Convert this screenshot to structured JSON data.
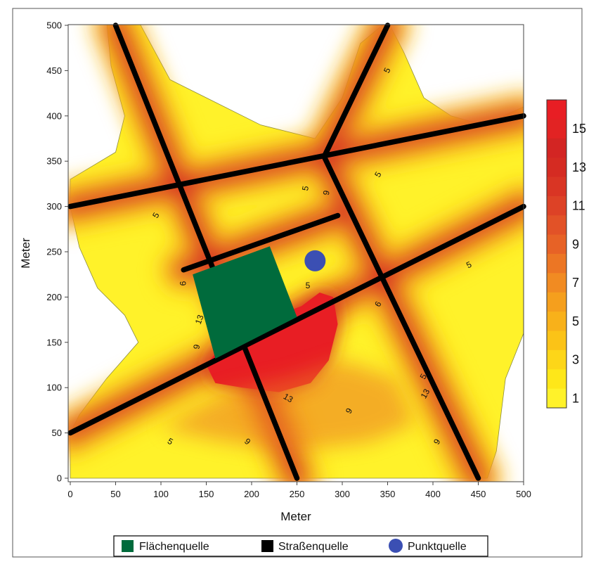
{
  "chart_data": {
    "type": "heatmap",
    "xlabel": "Meter",
    "ylabel": "Meter",
    "xlim": [
      0,
      500
    ],
    "ylim": [
      0,
      500
    ],
    "x_ticks": [
      "0",
      "50",
      "100",
      "150",
      "200",
      "250",
      "300",
      "350",
      "400",
      "450",
      "500"
    ],
    "y_ticks": [
      "0",
      "50",
      "100",
      "150",
      "200",
      "250",
      "300",
      "350",
      "400",
      "450",
      "500"
    ],
    "colorbar": {
      "labels": [
        "15",
        "13",
        "11",
        "9",
        "7",
        "5",
        "3",
        "1"
      ],
      "levels": [
        1,
        2,
        3,
        4,
        5,
        6,
        7,
        8,
        9,
        10,
        11,
        12,
        13,
        14,
        15,
        16
      ],
      "colors": [
        "#fff22a",
        "#fee719",
        "#fdd618",
        "#fbc317",
        "#f8b11a",
        "#f59f1d",
        "#f18b22",
        "#ec7624",
        "#e76226",
        "#e25227",
        "#dd4226",
        "#d93524",
        "#d52b22",
        "#d32523",
        "#e22323",
        "#e81e24"
      ]
    },
    "roads": [
      {
        "from": [
          50,
          500
        ],
        "to": [
          250,
          0
        ]
      },
      {
        "from": [
          350,
          500
        ],
        "to": [
          280,
          355
        ]
      },
      {
        "from": [
          280,
          355
        ],
        "to": [
          450,
          0
        ]
      },
      {
        "from": [
          0,
          300
        ],
        "to": [
          500,
          400
        ]
      },
      {
        "from": [
          0,
          50
        ],
        "to": [
          500,
          300
        ]
      },
      {
        "from": [
          125,
          230
        ],
        "to": [
          295,
          290
        ]
      }
    ],
    "area_source": {
      "polygon": [
        [
          135,
          225
        ],
        [
          220,
          256
        ],
        [
          250,
          178
        ],
        [
          160,
          132
        ]
      ]
    },
    "point_source": {
      "x": 270,
      "y": 240
    },
    "contour_labels": [
      {
        "text": "5",
        "x": 350,
        "y": 450,
        "rot": -65
      },
      {
        "text": "5",
        "x": 260,
        "y": 320,
        "rot": -80
      },
      {
        "text": "9",
        "x": 283,
        "y": 315,
        "rot": -80
      },
      {
        "text": "5",
        "x": 340,
        "y": 335,
        "rot": -60
      },
      {
        "text": "5",
        "x": 95,
        "y": 290,
        "rot": -60
      },
      {
        "text": "5",
        "x": 440,
        "y": 235,
        "rot": -25
      },
      {
        "text": "5",
        "x": 262,
        "y": 212,
        "rot": 0
      },
      {
        "text": "6",
        "x": 125,
        "y": 215,
        "rot": -90
      },
      {
        "text": "13",
        "x": 143,
        "y": 175,
        "rot": -70
      },
      {
        "text": "9",
        "x": 140,
        "y": 145,
        "rot": -80
      },
      {
        "text": "6",
        "x": 340,
        "y": 192,
        "rot": -60
      },
      {
        "text": "5",
        "x": 390,
        "y": 112,
        "rot": -60
      },
      {
        "text": "13",
        "x": 392,
        "y": 93,
        "rot": -60
      },
      {
        "text": "13",
        "x": 240,
        "y": 88,
        "rot": 30
      },
      {
        "text": "9",
        "x": 308,
        "y": 74,
        "rot": -60
      },
      {
        "text": "9",
        "x": 195,
        "y": 40,
        "rot": 40
      },
      {
        "text": "9",
        "x": 405,
        "y": 40,
        "rot": -60
      },
      {
        "text": "5",
        "x": 110,
        "y": 40,
        "rot": 30
      }
    ]
  },
  "legend": {
    "items": [
      {
        "label": "Flächenquelle",
        "color": "#006b3c",
        "shape": "square"
      },
      {
        "label": "Straßenquelle",
        "color": "#000000",
        "shape": "square"
      },
      {
        "label": "Punktquelle",
        "color": "#3b4fb3",
        "shape": "circle"
      }
    ]
  }
}
